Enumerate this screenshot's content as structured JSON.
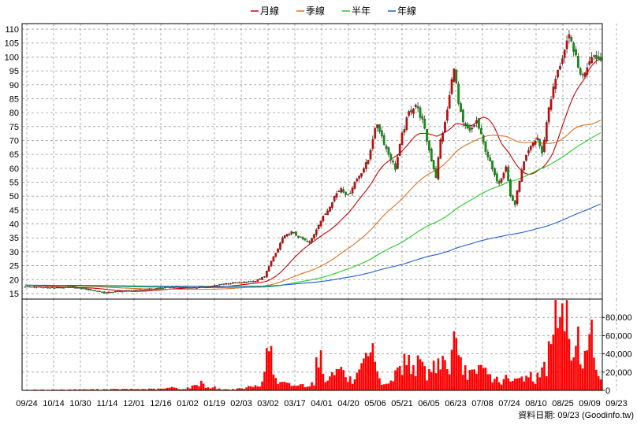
{
  "chart_data": {
    "type": "candlestick",
    "legend": [
      {
        "name": "月線",
        "color": "#cc0000"
      },
      {
        "name": "季線",
        "color": "#e07020"
      },
      {
        "name": "半年",
        "color": "#22cc22"
      },
      {
        "name": "年線",
        "color": "#1f5fd0"
      }
    ],
    "legend_position": "top-center",
    "price_axis": {
      "min": 13,
      "max": 112,
      "ticks": [
        15,
        20,
        25,
        30,
        35,
        40,
        45,
        50,
        55,
        60,
        65,
        70,
        75,
        80,
        85,
        90,
        95,
        100,
        105,
        110
      ]
    },
    "volume_axis": {
      "min": 0,
      "max": 100000,
      "ticks": [
        0,
        20000,
        40000,
        60000,
        80000
      ],
      "tick_labels": [
        "0",
        "20,000",
        "40,000",
        "60,000",
        "80,000"
      ]
    },
    "x_labels": [
      "09/24",
      "10/14",
      "10/30",
      "11/14",
      "12/01",
      "12/16",
      "01/02",
      "01/19",
      "02/03",
      "03/02",
      "03/17",
      "04/01",
      "04/20",
      "05/06",
      "05/21",
      "06/05",
      "06/23",
      "07/08",
      "07/24",
      "08/10",
      "08/25",
      "09/09",
      "09/23"
    ],
    "grid": true,
    "colors": {
      "up": "#e00000",
      "down": "#00a000",
      "volume": "#ff0000"
    },
    "close_keypoints": [
      [
        0,
        17.5
      ],
      [
        6,
        17.2
      ],
      [
        13,
        17
      ],
      [
        20,
        17.3
      ],
      [
        28,
        16.5
      ],
      [
        35,
        15.3
      ],
      [
        42,
        15.8
      ],
      [
        50,
        16.2
      ],
      [
        58,
        16.8
      ],
      [
        66,
        17.3
      ],
      [
        74,
        17
      ],
      [
        82,
        17.5
      ],
      [
        88,
        18.5
      ],
      [
        96,
        19
      ],
      [
        102,
        19.5
      ],
      [
        106,
        21
      ],
      [
        108,
        25
      ],
      [
        110,
        28
      ],
      [
        112,
        31
      ],
      [
        114,
        35
      ],
      [
        118,
        37
      ],
      [
        122,
        35
      ],
      [
        126,
        33
      ],
      [
        130,
        40
      ],
      [
        134,
        45
      ],
      [
        137,
        50
      ],
      [
        140,
        53
      ],
      [
        143,
        50
      ],
      [
        146,
        55
      ],
      [
        150,
        60
      ],
      [
        152,
        63
      ],
      [
        154,
        71
      ],
      [
        156,
        76
      ],
      [
        160,
        67
      ],
      [
        164,
        60
      ],
      [
        167,
        72
      ],
      [
        170,
        80
      ],
      [
        173,
        83
      ],
      [
        176,
        77
      ],
      [
        178,
        70
      ],
      [
        180,
        63
      ],
      [
        182,
        57
      ],
      [
        184,
        70
      ],
      [
        186,
        76
      ],
      [
        188,
        86
      ],
      [
        190,
        97
      ],
      [
        192,
        83
      ],
      [
        194,
        76
      ],
      [
        197,
        73
      ],
      [
        200,
        77
      ],
      [
        203,
        69
      ],
      [
        206,
        62
      ],
      [
        208,
        57
      ],
      [
        210,
        55
      ],
      [
        213,
        61
      ],
      [
        215,
        50
      ],
      [
        217,
        47
      ],
      [
        219,
        56
      ],
      [
        221,
        62
      ],
      [
        223,
        66
      ],
      [
        225,
        69
      ],
      [
        227,
        71
      ],
      [
        229,
        65
      ],
      [
        232,
        82
      ],
      [
        235,
        92
      ],
      [
        238,
        100
      ],
      [
        241,
        107
      ],
      [
        243,
        103
      ],
      [
        245,
        96
      ],
      [
        247,
        93
      ],
      [
        249,
        97
      ],
      [
        251,
        101
      ],
      [
        253,
        100
      ],
      [
        255,
        99
      ]
    ],
    "volume_keypoints": [
      [
        0,
        600
      ],
      [
        60,
        1500
      ],
      [
        66,
        3200
      ],
      [
        70,
        1200
      ],
      [
        75,
        4500
      ],
      [
        78,
        9500
      ],
      [
        80,
        3500
      ],
      [
        84,
        3000
      ],
      [
        86,
        1500
      ],
      [
        90,
        1000
      ],
      [
        96,
        1800
      ],
      [
        100,
        4000
      ],
      [
        104,
        5000
      ],
      [
        106,
        30000
      ],
      [
        108,
        35000
      ],
      [
        109,
        64000
      ],
      [
        110,
        15000
      ],
      [
        112,
        8000
      ],
      [
        118,
        6000
      ],
      [
        124,
        5500
      ],
      [
        128,
        9000
      ],
      [
        130,
        45000
      ],
      [
        132,
        18000
      ],
      [
        134,
        9000
      ],
      [
        136,
        32000
      ],
      [
        138,
        18000
      ],
      [
        140,
        30000
      ],
      [
        142,
        12000
      ],
      [
        146,
        10000
      ],
      [
        150,
        25000
      ],
      [
        152,
        32000
      ],
      [
        154,
        38000
      ],
      [
        156,
        15000
      ],
      [
        158,
        8000
      ],
      [
        162,
        8000
      ],
      [
        164,
        18000
      ],
      [
        166,
        25000
      ],
      [
        168,
        30000
      ],
      [
        170,
        35000
      ],
      [
        172,
        28000
      ],
      [
        176,
        25000
      ],
      [
        178,
        18000
      ],
      [
        180,
        22000
      ],
      [
        182,
        30000
      ],
      [
        184,
        35000
      ],
      [
        186,
        28000
      ],
      [
        188,
        25000
      ],
      [
        190,
        52000
      ],
      [
        192,
        30000
      ],
      [
        194,
        22000
      ],
      [
        197,
        20000
      ],
      [
        200,
        15000
      ],
      [
        202,
        25000
      ],
      [
        204,
        20000
      ],
      [
        207,
        14000
      ],
      [
        210,
        10000
      ],
      [
        213,
        12000
      ],
      [
        216,
        9000
      ],
      [
        220,
        14000
      ],
      [
        223,
        18000
      ],
      [
        226,
        12000
      ],
      [
        229,
        20000
      ],
      [
        231,
        28000
      ],
      [
        233,
        70000
      ],
      [
        235,
        95000
      ],
      [
        237,
        70000
      ],
      [
        239,
        85000
      ],
      [
        241,
        60000
      ],
      [
        243,
        40000
      ],
      [
        245,
        55000
      ],
      [
        247,
        40000
      ],
      [
        249,
        35000
      ],
      [
        251,
        60000
      ],
      [
        253,
        25000
      ],
      [
        255,
        20000
      ]
    ]
  },
  "footer": {
    "text": "資料日期: 09/23  (Goodinfo.tw)"
  }
}
